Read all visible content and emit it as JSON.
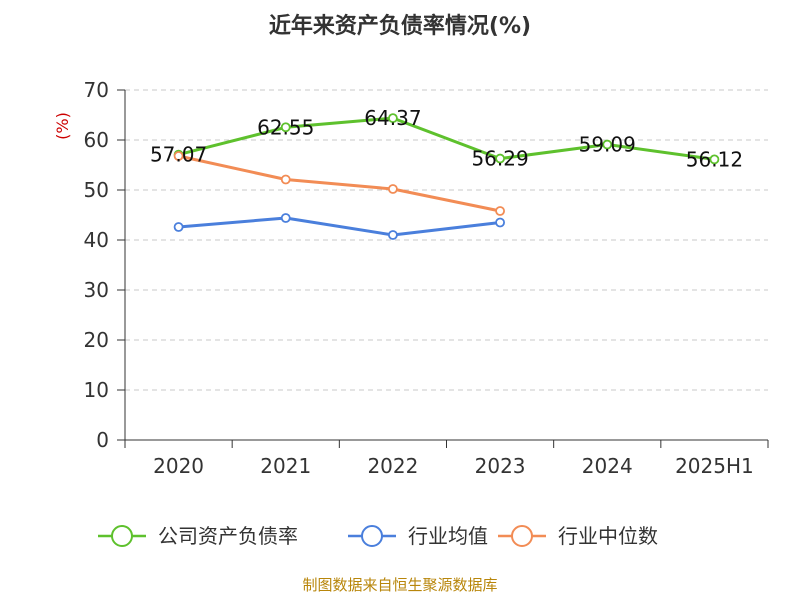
{
  "chart_data": {
    "type": "line",
    "title": "近年来资产负债率情况(%)",
    "ylabel": "(%)",
    "xlabel": "",
    "categories": [
      "2020",
      "2021",
      "2022",
      "2023",
      "2024",
      "2025H1"
    ],
    "ylim": [
      0,
      70
    ],
    "yticks": [
      0,
      10,
      20,
      30,
      40,
      50,
      60,
      70
    ],
    "grid": true,
    "legend_position": "bottom",
    "series": [
      {
        "name": "公司资产负债率",
        "color": "#5ec12d",
        "values": [
          57.07,
          62.55,
          64.37,
          56.29,
          59.09,
          56.12
        ],
        "labels": [
          "57.07",
          "62.55",
          "64.37",
          "56.29",
          "59.09",
          "56.12"
        ]
      },
      {
        "name": "行业均值",
        "color": "#4a7fdc",
        "values": [
          42.6,
          44.4,
          41.0,
          43.5,
          null,
          null
        ]
      },
      {
        "name": "行业中位数",
        "color": "#f28c55",
        "values": [
          56.8,
          52.1,
          50.2,
          45.8,
          null,
          null
        ]
      }
    ]
  },
  "footer": {
    "source": "制图数据来自恒生聚源数据库"
  }
}
